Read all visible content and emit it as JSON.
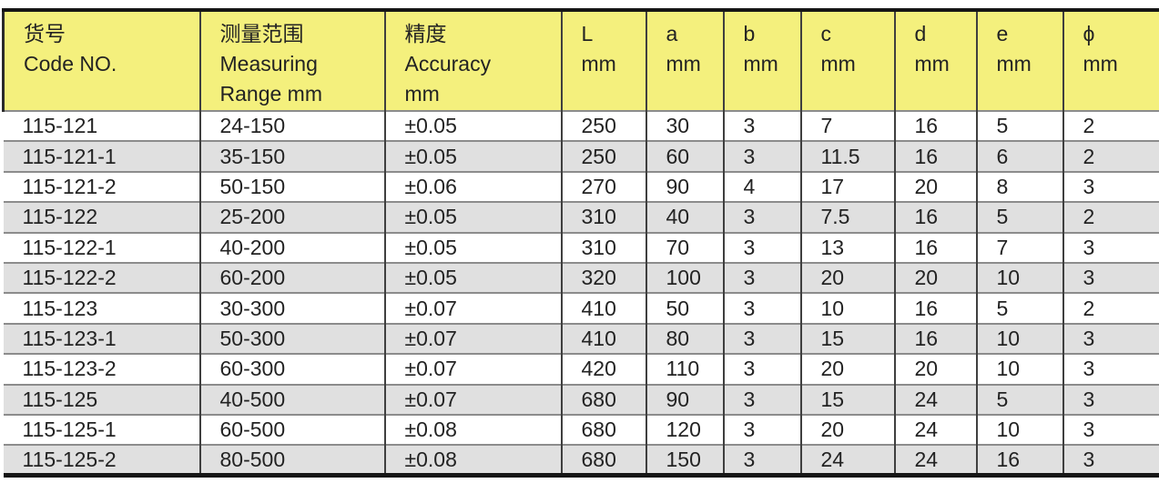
{
  "table": {
    "header": [
      {
        "id": "code",
        "lines": [
          "货号",
          "Code NO."
        ]
      },
      {
        "id": "measuring-range",
        "lines": [
          "测量范围",
          "Measuring",
          "Range mm"
        ]
      },
      {
        "id": "accuracy",
        "lines": [
          "精度",
          "Accuracy",
          "mm"
        ]
      },
      {
        "id": "L",
        "lines": [
          "L",
          "mm"
        ]
      },
      {
        "id": "a",
        "lines": [
          "a",
          "mm"
        ]
      },
      {
        "id": "b",
        "lines": [
          "b",
          "mm"
        ]
      },
      {
        "id": "c",
        "lines": [
          "c",
          "mm"
        ]
      },
      {
        "id": "d",
        "lines": [
          "d",
          "mm"
        ]
      },
      {
        "id": "e",
        "lines": [
          "e",
          "mm"
        ]
      },
      {
        "id": "phi",
        "lines": [
          "ϕ",
          "mm"
        ]
      }
    ],
    "rows": [
      [
        "115-121",
        "24-150",
        "±0.05",
        "250",
        "30",
        "3",
        "7",
        "16",
        "5",
        "2"
      ],
      [
        "115-121-1",
        "35-150",
        "±0.05",
        "250",
        "60",
        "3",
        "11.5",
        "16",
        "6",
        "2"
      ],
      [
        "115-121-2",
        "50-150",
        "±0.06",
        "270",
        "90",
        "4",
        "17",
        "20",
        "8",
        "3"
      ],
      [
        "115-122",
        "25-200",
        "±0.05",
        "310",
        "40",
        "3",
        "7.5",
        "16",
        "5",
        "2"
      ],
      [
        "115-122-1",
        "40-200",
        "±0.05",
        "310",
        "70",
        "3",
        "13",
        "16",
        "7",
        "3"
      ],
      [
        "115-122-2",
        "60-200",
        "±0.05",
        "320",
        "100",
        "3",
        "20",
        "20",
        "10",
        "3"
      ],
      [
        "115-123",
        "30-300",
        "±0.07",
        "410",
        "50",
        "3",
        "10",
        "16",
        "5",
        "2"
      ],
      [
        "115-123-1",
        "50-300",
        "±0.07",
        "410",
        "80",
        "3",
        "15",
        "16",
        "10",
        "3"
      ],
      [
        "115-123-2",
        "60-300",
        "±0.07",
        "420",
        "110",
        "3",
        "20",
        "20",
        "10",
        "3"
      ],
      [
        "115-125",
        "40-500",
        "±0.07",
        "680",
        "90",
        "3",
        "15",
        "24",
        "5",
        "3"
      ],
      [
        "115-125-1",
        "60-500",
        "±0.08",
        "680",
        "120",
        "3",
        "20",
        "24",
        "10",
        "3"
      ],
      [
        "115-125-2",
        "80-500",
        "±0.08",
        "680",
        "150",
        "3",
        "24",
        "24",
        "16",
        "3"
      ]
    ],
    "colors": {
      "header_bg": "#F4F07D",
      "row_bg": "#FFFFFF",
      "row_alt_bg": "#E0E0E0",
      "grid_vertical": "#3F3F3F",
      "grid_horizontal": "#8C8C8C",
      "outer_border": "#161616",
      "text": "#232323"
    }
  }
}
